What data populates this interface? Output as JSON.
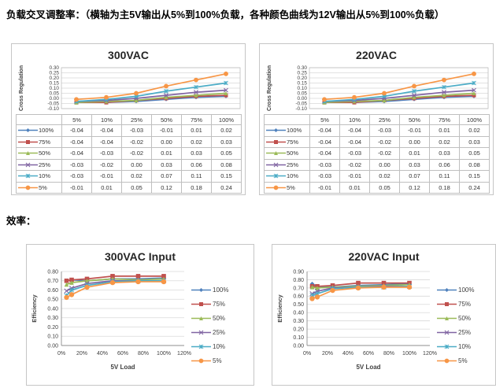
{
  "page": {
    "heading1": "负载交叉调整率：（横轴为主5V输出从5%到100%负载，各种颜色曲线为12V输出从5%到100%负载）",
    "heading2": "效率："
  },
  "palette": {
    "blue": "#4F81BD",
    "red": "#C0504D",
    "green": "#9BBB59",
    "purple": "#8064A2",
    "cyan": "#4BACC6",
    "orange": "#F79646",
    "gridline": "#D9D9D9",
    "axis": "#8C8C8C",
    "table_border": "#BFBFBF"
  },
  "chart_data": [
    {
      "id": "cross-regulation-300vac",
      "type": "line",
      "title": "300VAC",
      "ylabel": "Cross Regulation",
      "ylim": [
        -0.1,
        0.3
      ],
      "ytick_step": 0.05,
      "grid": true,
      "show_table": true,
      "legend_position": "table-left",
      "categories": [
        "5%",
        "10%",
        "25%",
        "50%",
        "75%",
        "100%"
      ],
      "series": [
        {
          "name": "100%",
          "color": "#4F81BD",
          "marker": "diamond",
          "values": [
            -0.04,
            -0.04,
            -0.03,
            -0.01,
            0.01,
            0.02
          ]
        },
        {
          "name": "75%",
          "color": "#C0504D",
          "marker": "square",
          "values": [
            -0.04,
            -0.04,
            -0.02,
            0.0,
            0.02,
            0.03
          ]
        },
        {
          "name": "50%",
          "color": "#9BBB59",
          "marker": "triangle",
          "values": [
            -0.04,
            -0.03,
            -0.02,
            0.01,
            0.03,
            0.05
          ]
        },
        {
          "name": "25%",
          "color": "#8064A2",
          "marker": "x",
          "values": [
            -0.03,
            -0.02,
            0.0,
            0.03,
            0.06,
            0.08
          ]
        },
        {
          "name": "10%",
          "color": "#4BACC6",
          "marker": "star",
          "values": [
            -0.03,
            -0.01,
            0.02,
            0.07,
            0.11,
            0.15
          ]
        },
        {
          "name": "5%",
          "color": "#F79646",
          "marker": "circle",
          "values": [
            -0.01,
            0.01,
            0.05,
            0.12,
            0.18,
            0.24
          ]
        }
      ]
    },
    {
      "id": "cross-regulation-220vac",
      "type": "line",
      "title": "220VAC",
      "ylabel": "Cross Regulation",
      "ylim": [
        -0.1,
        0.3
      ],
      "ytick_step": 0.05,
      "grid": true,
      "show_table": true,
      "legend_position": "table-left",
      "categories": [
        "5%",
        "10%",
        "25%",
        "50%",
        "75%",
        "100%"
      ],
      "series": [
        {
          "name": "100%",
          "color": "#4F81BD",
          "marker": "diamond",
          "values": [
            -0.04,
            -0.04,
            -0.03,
            -0.01,
            0.01,
            0.02
          ]
        },
        {
          "name": "75%",
          "color": "#C0504D",
          "marker": "square",
          "values": [
            -0.04,
            -0.04,
            -0.02,
            0.0,
            0.02,
            0.03
          ]
        },
        {
          "name": "50%",
          "color": "#9BBB59",
          "marker": "triangle",
          "values": [
            -0.04,
            -0.03,
            -0.02,
            0.01,
            0.03,
            0.05
          ]
        },
        {
          "name": "25%",
          "color": "#8064A2",
          "marker": "x",
          "values": [
            -0.03,
            -0.02,
            0.0,
            0.03,
            0.06,
            0.08
          ]
        },
        {
          "name": "10%",
          "color": "#4BACC6",
          "marker": "star",
          "values": [
            -0.03,
            -0.01,
            0.02,
            0.07,
            0.11,
            0.15
          ]
        },
        {
          "name": "5%",
          "color": "#F79646",
          "marker": "circle",
          "values": [
            -0.01,
            0.01,
            0.05,
            0.12,
            0.18,
            0.24
          ]
        }
      ]
    },
    {
      "id": "efficiency-300vac",
      "type": "line",
      "title": "300VAC Input",
      "xlabel": "5V Load",
      "ylabel": "Efficiency",
      "x": [
        5,
        10,
        25,
        50,
        75,
        100
      ],
      "xlim": [
        0,
        120
      ],
      "xtick_step": 20,
      "ylim": [
        0,
        0.8
      ],
      "ytick_step": 0.1,
      "grid": true,
      "show_table": false,
      "legend_position": "right",
      "series": [
        {
          "name": "100%",
          "color": "#4F81BD",
          "marker": "diamond",
          "values": [
            0.7,
            0.71,
            0.7,
            0.72,
            0.72,
            0.73
          ]
        },
        {
          "name": "75%",
          "color": "#C0504D",
          "marker": "square",
          "values": [
            0.7,
            0.71,
            0.72,
            0.75,
            0.75,
            0.75
          ]
        },
        {
          "name": "50%",
          "color": "#9BBB59",
          "marker": "triangle",
          "values": [
            0.66,
            0.68,
            0.7,
            0.72,
            0.71,
            0.72
          ]
        },
        {
          "name": "25%",
          "color": "#8064A2",
          "marker": "x",
          "values": [
            0.59,
            0.62,
            0.67,
            0.7,
            0.7,
            0.7
          ]
        },
        {
          "name": "10%",
          "color": "#4BACC6",
          "marker": "star",
          "values": [
            0.54,
            0.6,
            0.65,
            0.69,
            0.7,
            0.7
          ]
        },
        {
          "name": "5%",
          "color": "#F79646",
          "marker": "circle",
          "values": [
            0.52,
            0.55,
            0.63,
            0.68,
            0.69,
            0.69
          ]
        }
      ]
    },
    {
      "id": "efficiency-220vac",
      "type": "line",
      "title": "220VAC Input",
      "xlabel": "5V Load",
      "ylabel": "Efficiency",
      "x": [
        5,
        10,
        25,
        50,
        75,
        100
      ],
      "xlim": [
        0,
        120
      ],
      "xtick_step": 20,
      "ylim": [
        0,
        0.9
      ],
      "ytick_step": 0.1,
      "grid": true,
      "show_table": false,
      "legend_position": "right",
      "series": [
        {
          "name": "100%",
          "color": "#4F81BD",
          "marker": "diamond",
          "values": [
            0.75,
            0.72,
            0.71,
            0.73,
            0.74,
            0.75
          ]
        },
        {
          "name": "75%",
          "color": "#C0504D",
          "marker": "square",
          "values": [
            0.72,
            0.72,
            0.73,
            0.76,
            0.76,
            0.76
          ]
        },
        {
          "name": "50%",
          "color": "#9BBB59",
          "marker": "triangle",
          "values": [
            0.71,
            0.7,
            0.71,
            0.72,
            0.73,
            0.74
          ]
        },
        {
          "name": "25%",
          "color": "#8064A2",
          "marker": "x",
          "values": [
            0.63,
            0.66,
            0.7,
            0.71,
            0.72,
            0.72
          ]
        },
        {
          "name": "10%",
          "color": "#4BACC6",
          "marker": "star",
          "values": [
            0.61,
            0.63,
            0.69,
            0.71,
            0.71,
            0.72
          ]
        },
        {
          "name": "5%",
          "color": "#F79646",
          "marker": "circle",
          "values": [
            0.57,
            0.59,
            0.67,
            0.7,
            0.71,
            0.71
          ]
        }
      ]
    }
  ]
}
